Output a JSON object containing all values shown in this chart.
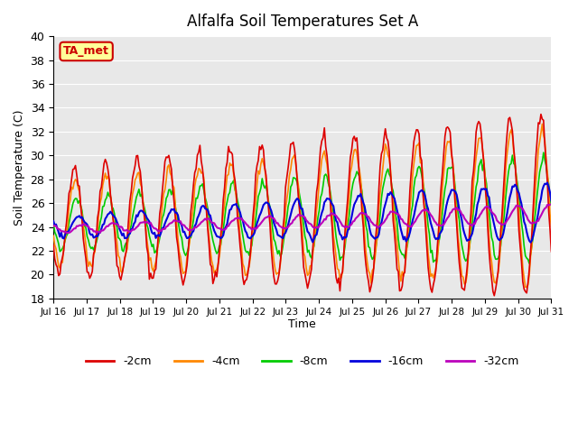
{
  "title": "Alfalfa Soil Temperatures Set A",
  "xlabel": "Time",
  "ylabel": "Soil Temperature (C)",
  "ylim": [
    18,
    40
  ],
  "xlim": [
    0,
    360
  ],
  "bg_color": "#e8e8e8",
  "ta_met_label": "TA_met",
  "ta_met_bg": "#ffff99",
  "ta_met_border": "#cc0000",
  "legend_entries": [
    "-2cm",
    "-4cm",
    "-8cm",
    "-16cm",
    "-32cm"
  ],
  "legend_colors": [
    "#dd0000",
    "#ff8800",
    "#00cc00",
    "#0000dd",
    "#bb00bb"
  ],
  "xtick_labels": [
    "Jul 16",
    "Jul 17",
    "Jul 18",
    "Jul 19",
    "Jul 20",
    "Jul 21",
    "Jul 22",
    "Jul 23",
    "Jul 24",
    "Jul 25",
    "Jul 26",
    "Jul 27",
    "Jul 28",
    "Jul 29",
    "Jul 30",
    "Jul 31"
  ],
  "num_days": 16
}
